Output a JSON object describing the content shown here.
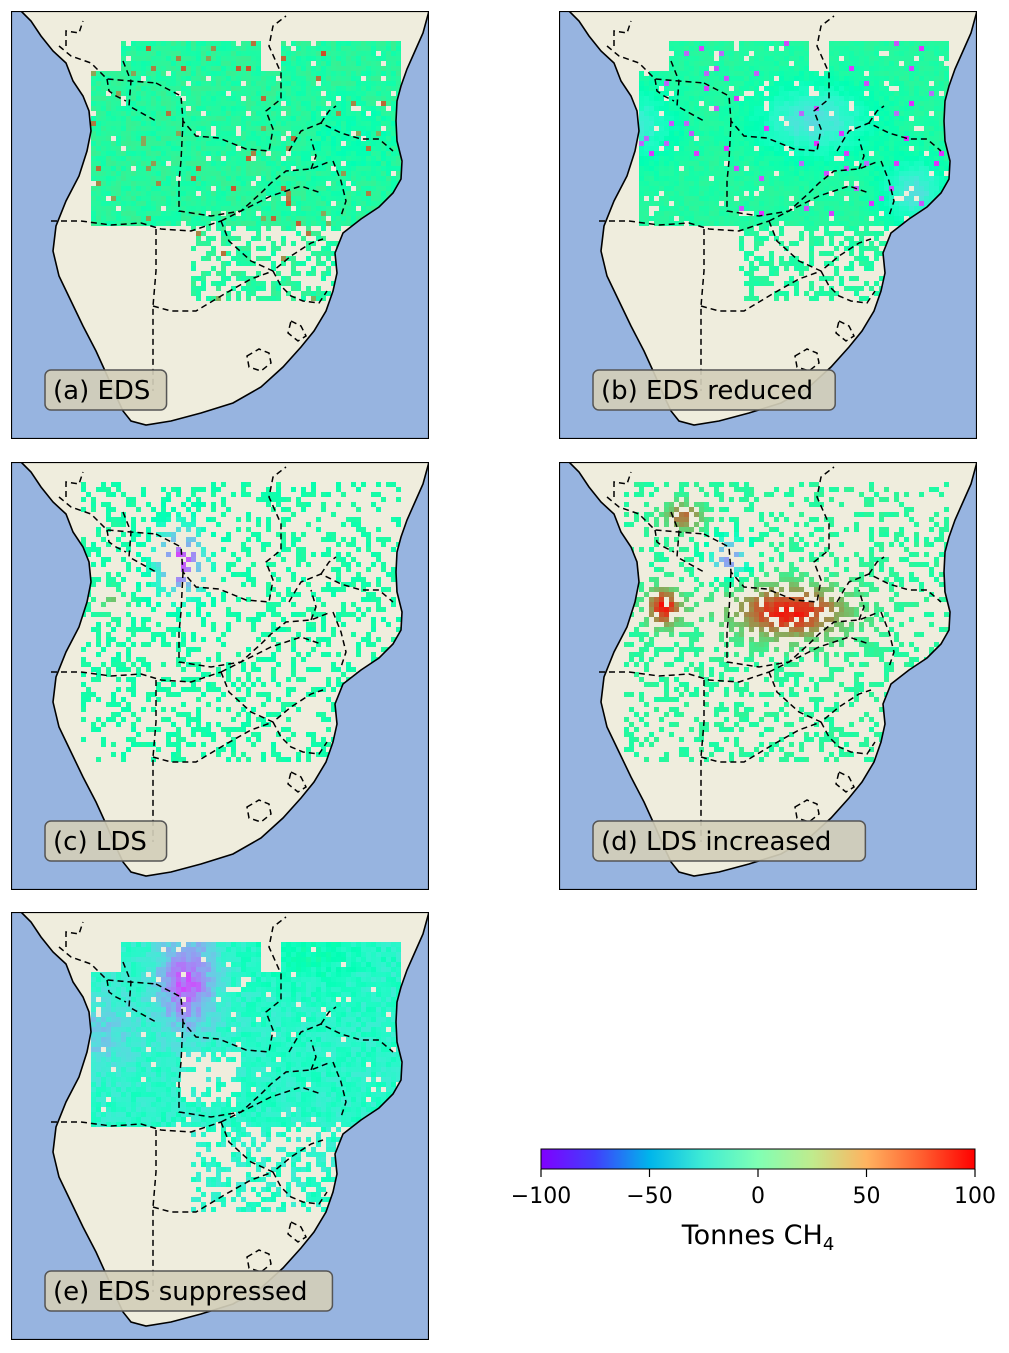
{
  "colors": {
    "ocean": "#97b4e0",
    "land": "#efeddd",
    "coast": "#000000",
    "border": "#000000",
    "label_box_fill": "#d3ceb9",
    "label_box_stroke": "#555555"
  },
  "panels": [
    {
      "id": "a",
      "label": "(a) EDS",
      "pattern": "eds"
    },
    {
      "id": "b",
      "label": "(b) EDS reduced",
      "pattern": "eds_reduced"
    },
    {
      "id": "c",
      "label": "(c) LDS",
      "pattern": "lds"
    },
    {
      "id": "d",
      "label": "(d) LDS increased",
      "pattern": "lds_increased"
    },
    {
      "id": "e",
      "label": "(e) EDS suppressed",
      "pattern": "eds_suppressed"
    }
  ],
  "colorbar": {
    "colormap": "rainbow",
    "range": [
      -100,
      100
    ],
    "ticks": [
      "−100",
      "−50",
      "0",
      "50",
      "100"
    ],
    "tick_values": [
      -100,
      -50,
      0,
      50,
      100
    ],
    "label_main": "Tonnes CH",
    "label_sub": "4"
  }
}
